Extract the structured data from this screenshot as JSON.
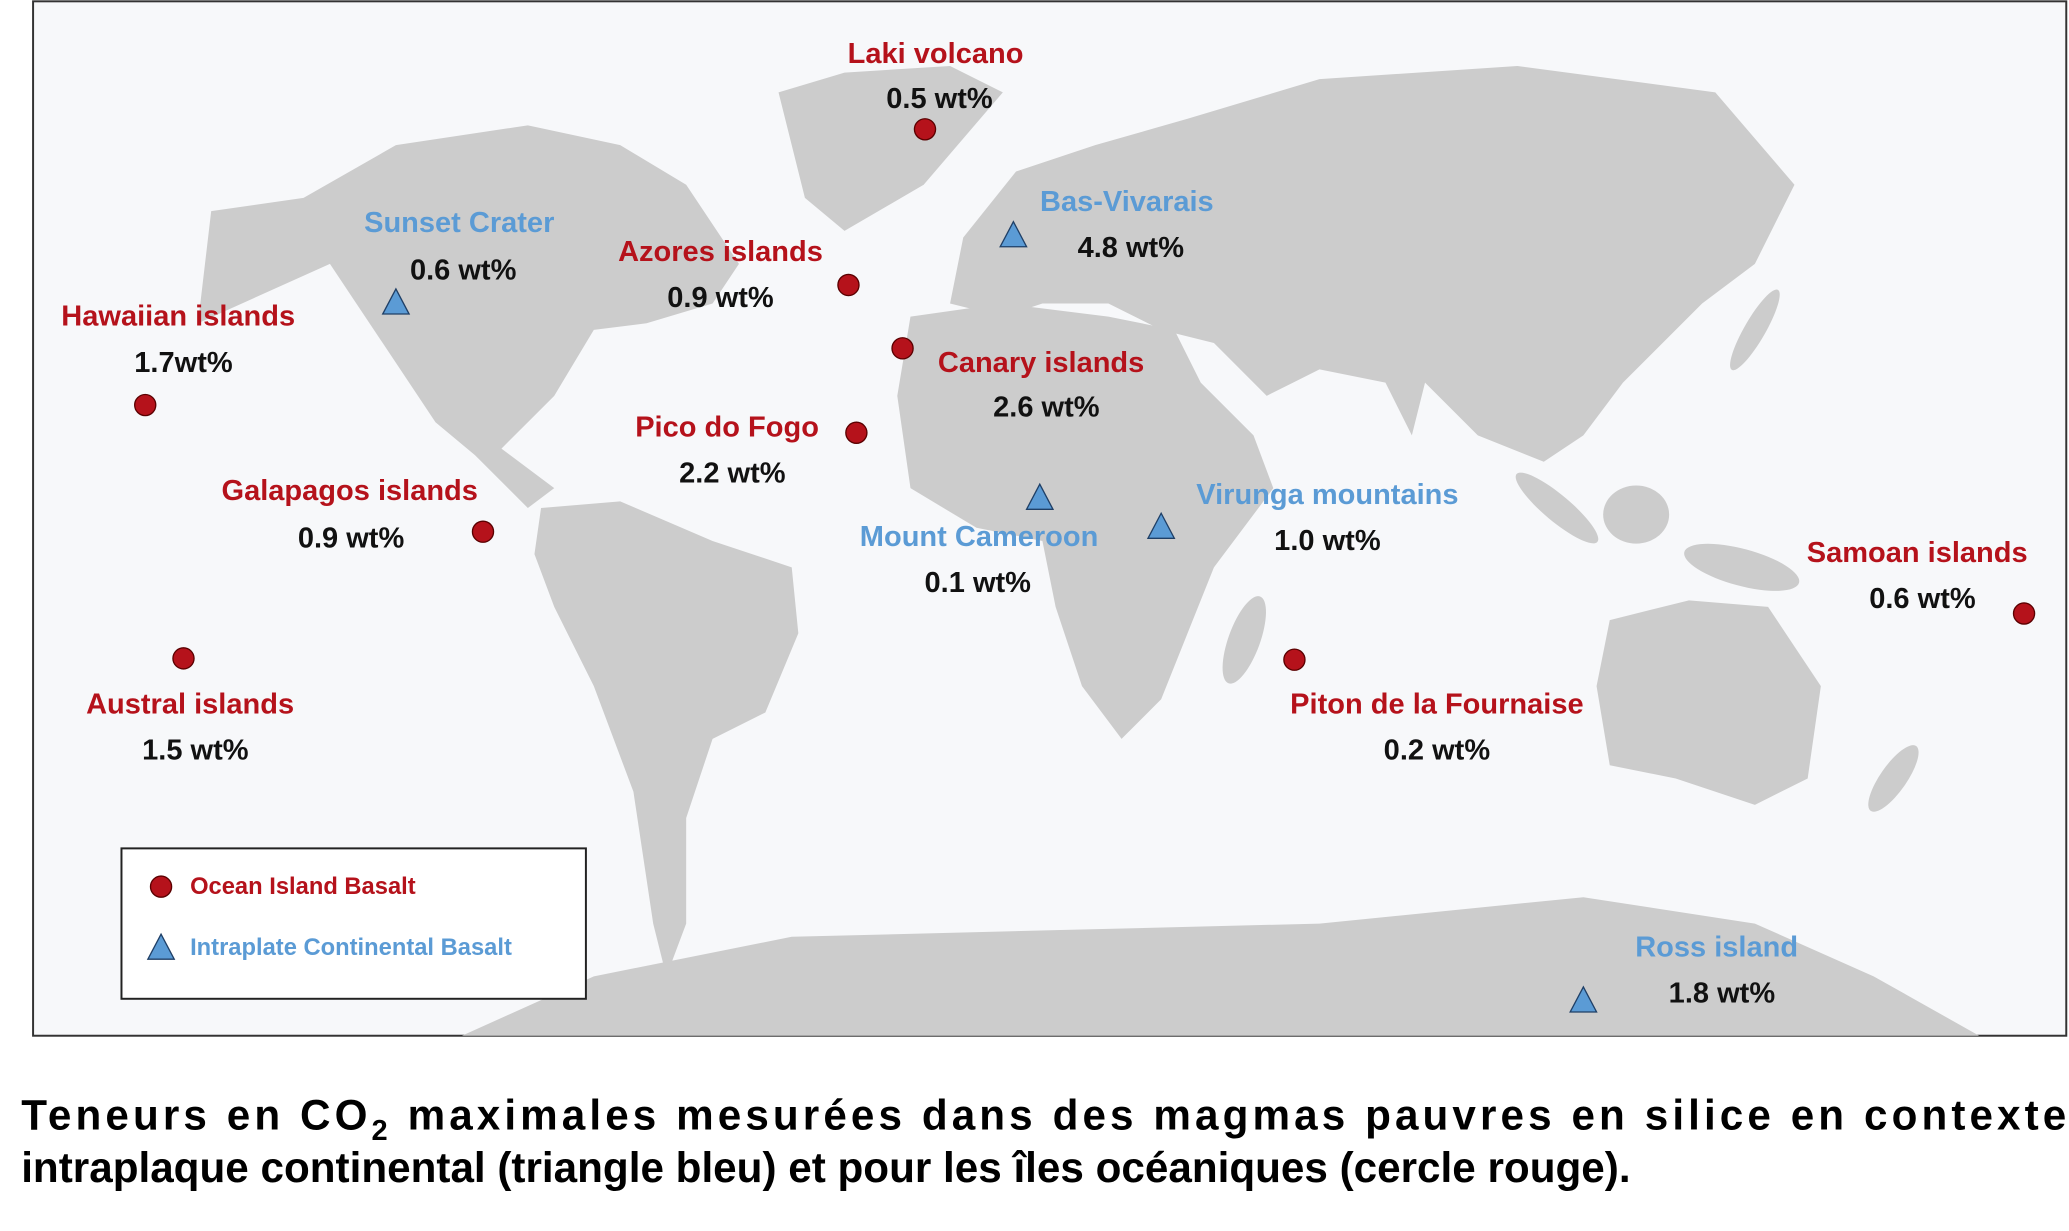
{
  "colors": {
    "ocean_island": "#b5121b",
    "intraplate": "#5b9bd5",
    "land": "#cccccc",
    "ocean": "#f7f8fa"
  },
  "sites": [
    {
      "name": "Laki volcano",
      "value": "0.5 wt%",
      "type": "ocean_island"
    },
    {
      "name": "Sunset Crater",
      "value": "0.6 wt%",
      "type": "intraplate"
    },
    {
      "name": "Bas-Vivarais",
      "value": "4.8 wt%",
      "type": "intraplate"
    },
    {
      "name": "Azores islands",
      "value": "0.9 wt%",
      "type": "ocean_island"
    },
    {
      "name": "Hawaiian islands",
      "value": "1.7wt%",
      "type": "ocean_island"
    },
    {
      "name": "Canary islands",
      "value": "2.6 wt%",
      "type": "ocean_island"
    },
    {
      "name": "Pico do Fogo",
      "value": "2.2 wt%",
      "type": "ocean_island"
    },
    {
      "name": "Galapagos islands",
      "value": "0.9 wt%",
      "type": "ocean_island"
    },
    {
      "name": "Mount Cameroon",
      "value": "0.1 wt%",
      "type": "intraplate"
    },
    {
      "name": "Virunga mountains",
      "value": "1.0 wt%",
      "type": "intraplate"
    },
    {
      "name": "Samoan islands",
      "value": "0.6 wt%",
      "type": "ocean_island"
    },
    {
      "name": "Austral islands",
      "value": "1.5 wt%",
      "type": "ocean_island"
    },
    {
      "name": "Piton de la Fournaise",
      "value": "0.2 wt%",
      "type": "ocean_island"
    },
    {
      "name": "Ross island",
      "value": "1.8 wt%",
      "type": "intraplate"
    }
  ],
  "legend": {
    "ocean_island": "Ocean Island Basalt",
    "intraplate": "Intraplate Continental Basalt"
  },
  "caption": {
    "line1_a": "Teneurs en CO",
    "line1_sub": "2",
    "line1_b": " maximales mesurées dans des magmas pauvres en silice en contexte",
    "line2": "intraplaque continental (triangle bleu) et pour les îles océaniques (cercle rouge)."
  }
}
